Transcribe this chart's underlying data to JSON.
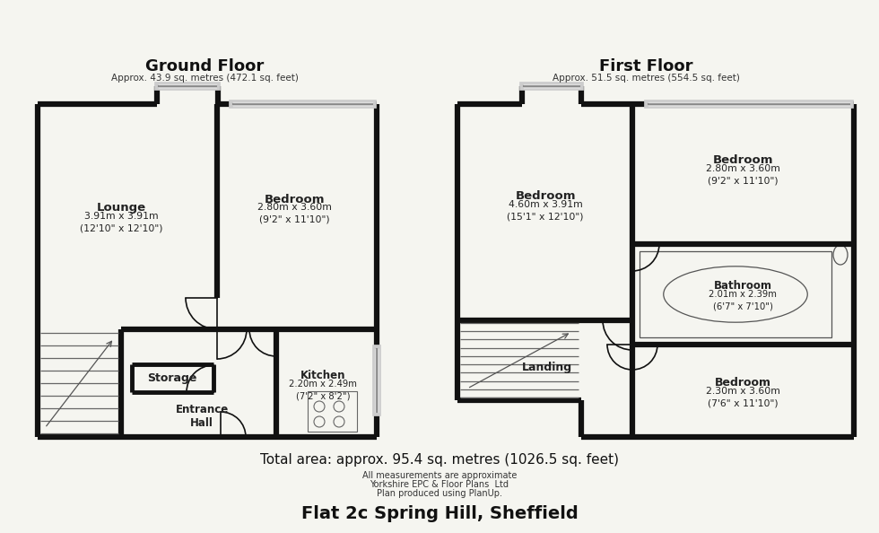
{
  "bg_color": "#f5f5f0",
  "wall_color": "#111111",
  "wall_lw": 4.5,
  "thin_lw": 1.2,
  "title": "Flat 2c Spring Hill, Sheffield",
  "footer1": "Total area: approx. 95.4 sq. metres (1026.5 sq. feet)",
  "footer2": "All measurements are approximate",
  "footer3": "Yorkshire EPC & Floor Plans  Ltd",
  "footer4": "Plan produced using PlanUp.",
  "gf_title": "Ground Floor",
  "gf_sub": "Approx. 43.9 sq. metres (472.1 sq. feet)",
  "ff_title": "First Floor",
  "ff_sub": "Approx. 51.5 sq. metres (554.5 sq. feet)",
  "rooms": {
    "lounge": {
      "label": "Lounge",
      "sub": "3.91m x 3.91m\n(12'10\" x 12'10\")"
    },
    "bed_gf": {
      "label": "Bedroom",
      "sub": "2.80m x 3.60m\n(9'2\" x 11'10\")"
    },
    "kitchen": {
      "label": "Kitchen",
      "sub": "2.20m x 2.49m\n(7'2\" x 8'2\")"
    },
    "storage": {
      "label": "Storage",
      "sub": ""
    },
    "entrance": {
      "label": "Entrance\nHall",
      "sub": ""
    },
    "bed_ff1": {
      "label": "Bedroom",
      "sub": "4.60m x 3.91m\n(15'1\" x 12'10\")"
    },
    "bed_ff2": {
      "label": "Bedroom",
      "sub": "2.80m x 3.60m\n(9'2\" x 11'10\")"
    },
    "bathroom": {
      "label": "Bathroom",
      "sub": "2.01m x 2.39m\n(6'7\" x 7'10\")"
    },
    "bed_ff3": {
      "label": "Bedroom",
      "sub": "2.30m x 3.60m\n(7'6\" x 11'10\")"
    },
    "landing": {
      "label": "Landing",
      "sub": ""
    }
  }
}
